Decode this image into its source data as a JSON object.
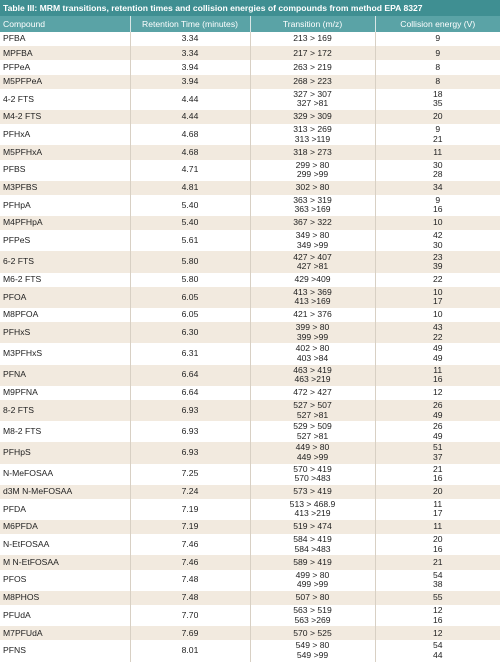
{
  "title": "Table III: MRM transitions, retention times and collision energies of compounds from method EPA 8327",
  "table": {
    "header": [
      "Compound",
      "Retention Time (minutes)",
      "Transition (m/z)",
      "Collision energy (V)"
    ],
    "rows": [
      [
        "PFBA",
        "3.34",
        "213 > 169",
        "9"
      ],
      [
        "MPFBA",
        "3.34",
        "217 > 172",
        "9"
      ],
      [
        "PFPeA",
        "3.94",
        "263 > 219",
        "8"
      ],
      [
        "M5PFPeA",
        "3.94",
        "268 > 223",
        "8"
      ],
      [
        "4-2 FTS",
        "4.44",
        [
          "327 > 307",
          "327 >81"
        ],
        [
          "18",
          "35"
        ]
      ],
      [
        "M4-2 FTS",
        "4.44",
        "329 > 309",
        "20"
      ],
      [
        "PFHxA",
        "4.68",
        [
          "313 > 269",
          "313 >119"
        ],
        [
          "9",
          "21"
        ]
      ],
      [
        "M5PFHxA",
        "4.68",
        "318 > 273",
        "11"
      ],
      [
        "PFBS",
        "4.71",
        [
          "299 > 80",
          "299 >99"
        ],
        [
          "30",
          "28"
        ]
      ],
      [
        "M3PFBS",
        "4.81",
        "302 > 80",
        "34"
      ],
      [
        "PFHpA",
        "5.40",
        [
          "363 > 319",
          "363 >169"
        ],
        [
          "9",
          "16"
        ]
      ],
      [
        "M4PFHpA",
        "5.40",
        "367 > 322",
        "10"
      ],
      [
        "PFPeS",
        "5.61",
        [
          "349 > 80",
          "349 >99"
        ],
        [
          "42",
          "30"
        ]
      ],
      [
        "6-2 FTS",
        "5.80",
        [
          "427 > 407",
          "427 >81"
        ],
        [
          "23",
          "39"
        ]
      ],
      [
        "M6-2 FTS",
        "5.80",
        "429 >409",
        "22"
      ],
      [
        "PFOA",
        "6.05",
        [
          "413 > 369",
          "413 >169"
        ],
        [
          "10",
          "17"
        ]
      ],
      [
        "M8PFOA",
        "6.05",
        "421 > 376",
        "10"
      ],
      [
        "PFHxS",
        "6.30",
        [
          "399 > 80",
          "399 >99"
        ],
        [
          "43",
          "22"
        ]
      ],
      [
        "M3PFHxS",
        "6.31",
        [
          "402 > 80",
          "403 >84"
        ],
        [
          "49",
          "49"
        ]
      ],
      [
        "PFNA",
        "6.64",
        [
          "463 > 419",
          "463 >219"
        ],
        [
          "11",
          "16"
        ]
      ],
      [
        "M9PFNA",
        "6.64",
        "472 > 427",
        "12"
      ],
      [
        "8-2 FTS",
        "6.93",
        [
          "527 > 507",
          "527 >81"
        ],
        [
          "26",
          "49"
        ]
      ],
      [
        "M8-2 FTS",
        "6.93",
        [
          "529 > 509",
          "527 >81"
        ],
        [
          "26",
          "49"
        ]
      ],
      [
        "PFHpS",
        "6.93",
        [
          "449 > 80",
          "449 >99"
        ],
        [
          "51",
          "37"
        ]
      ],
      [
        "N-MeFOSAA",
        "7.25",
        [
          "570 > 419",
          "570 >483"
        ],
        [
          "21",
          "16"
        ]
      ],
      [
        "d3M N-MeFOSAA",
        "7.24",
        "573 > 419",
        "20"
      ],
      [
        "PFDA",
        "7.19",
        [
          "513 > 468.9",
          "413 >219"
        ],
        [
          "11",
          "17"
        ]
      ],
      [
        "M6PFDA",
        "7.19",
        "519 > 474",
        "11"
      ],
      [
        "N-EtFOSAA",
        "7.46",
        [
          "584 > 419",
          "584 >483"
        ],
        [
          "20",
          "16"
        ]
      ],
      [
        "M N-EtFOSAA",
        "7.46",
        "589 > 419",
        "21"
      ],
      [
        "PFOS",
        "7.48",
        [
          "499 > 80",
          "499 >99"
        ],
        [
          "54",
          "38"
        ]
      ],
      [
        "M8PHOS",
        "7.48",
        "507 > 80",
        "55"
      ],
      [
        "PFUdA",
        "7.70",
        [
          "563 > 519",
          "563 >269"
        ],
        [
          "12",
          "16"
        ]
      ],
      [
        "M7PFUdA",
        "7.69",
        "570 > 525",
        "12"
      ],
      [
        "PFNS",
        "8.01",
        [
          "549 > 80",
          "549 >99"
        ],
        [
          "54",
          "44"
        ]
      ]
    ]
  }
}
